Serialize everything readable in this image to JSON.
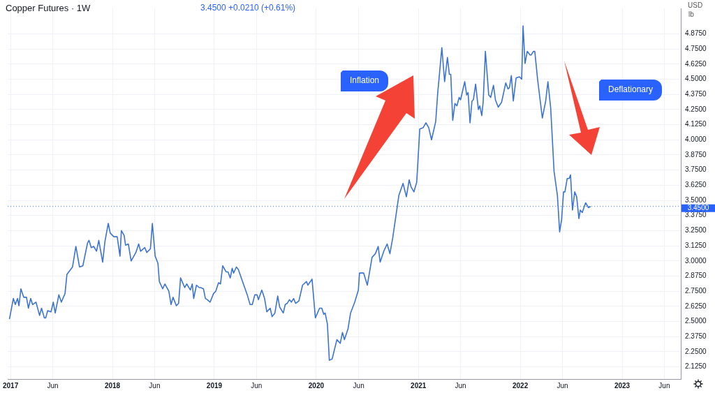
{
  "chart_data": {
    "type": "line",
    "title": "Copper Futures · 1W",
    "ylabel": "USD",
    "annotations": [
      "3.4500 +0.0210 (+0.61%)",
      "lb",
      "Inflation",
      "Deflationary"
    ],
    "x": [
      "2016-12-28",
      "2017-01-11",
      "2017-01-18",
      "2017-01-26",
      "2017-01-31",
      "2017-02-07",
      "2017-02-17",
      "2017-02-27",
      "2017-03-06",
      "2017-03-14",
      "2017-03-21",
      "2017-04-02",
      "2017-04-15",
      "2017-04-22",
      "2017-05-02",
      "2017-05-07",
      "2017-05-14",
      "2017-05-26",
      "2017-06-03",
      "2017-06-10",
      "2017-06-23",
      "2017-07-02",
      "2017-07-15",
      "2017-07-22",
      "2017-08-11",
      "2017-08-23",
      "2017-09-05",
      "2017-09-17",
      "2017-10-04",
      "2017-10-09",
      "2017-10-17",
      "2017-10-26",
      "2017-11-05",
      "2017-11-13",
      "2017-11-27",
      "2017-12-05",
      "2017-12-17",
      "2017-12-24",
      "2018-01-06",
      "2018-01-18",
      "2018-01-28",
      "2018-02-02",
      "2018-02-12",
      "2018-02-17",
      "2018-02-27",
      "2018-03-09",
      "2018-03-26",
      "2018-04-05",
      "2018-04-12",
      "2018-04-27",
      "2018-05-04",
      "2018-05-17",
      "2018-05-24",
      "2018-06-03",
      "2018-06-13",
      "2018-06-18",
      "2018-06-30",
      "2018-07-08",
      "2018-07-22",
      "2018-07-30",
      "2018-08-06",
      "2018-08-18",
      "2018-08-26",
      "2018-09-02",
      "2018-09-17",
      "2018-09-24",
      "2018-10-07",
      "2018-10-14",
      "2018-10-19",
      "2018-10-29",
      "2018-11-08",
      "2018-11-13",
      "2018-11-23",
      "2018-11-30",
      "2018-12-07",
      "2018-12-17",
      "2018-12-29",
      "2019-01-06",
      "2019-01-16",
      "2019-01-23",
      "2019-01-31",
      "2019-02-12",
      "2019-02-19",
      "2019-02-27",
      "2019-03-06",
      "2019-03-11",
      "2019-03-21",
      "2019-03-28",
      "2019-04-12",
      "2019-04-29",
      "2019-05-09",
      "2019-05-17",
      "2019-05-26",
      "2019-06-03",
      "2019-06-08",
      "2019-06-20",
      "2019-06-30",
      "2019-07-08",
      "2019-07-20",
      "2019-07-27",
      "2019-08-06",
      "2019-08-16",
      "2019-08-23",
      "2019-09-05",
      "2019-09-12",
      "2019-09-19",
      "2019-09-27",
      "2019-10-04",
      "2019-10-12",
      "2019-10-19",
      "2019-10-31",
      "2019-11-13",
      "2019-11-27",
      "2019-12-02",
      "2019-12-17",
      "2019-12-29",
      "2020-01-13",
      "2020-01-21",
      "2020-01-28",
      "2020-02-02",
      "2020-02-10",
      "2020-02-17",
      "2020-02-27",
      "2020-03-15",
      "2020-03-27",
      "2020-04-04",
      "2020-04-11",
      "2020-04-24",
      "2020-05-03",
      "2020-05-18",
      "2020-05-31",
      "2020-06-04",
      "2020-06-19",
      "2020-07-02",
      "2020-07-19",
      "2020-07-31",
      "2020-08-10",
      "2020-08-17",
      "2020-08-30",
      "2020-09-11",
      "2020-09-21",
      "2020-10-01",
      "2020-10-23",
      "2020-11-07",
      "2020-11-19",
      "2020-11-29",
      "2020-12-06",
      "2020-12-16",
      "2020-12-26",
      "2021-01-06",
      "2021-01-18",
      "2021-01-28",
      "2021-02-07",
      "2021-02-17",
      "2021-03-04",
      "2021-03-11",
      "2021-03-26",
      "2021-04-05",
      "2021-04-15",
      "2021-04-22",
      "2021-04-27",
      "2021-05-04",
      "2021-05-12",
      "2021-05-19",
      "2021-05-27",
      "2021-06-01",
      "2021-06-16",
      "2021-06-23",
      "2021-06-28",
      "2021-07-05",
      "2021-07-12",
      "2021-07-17",
      "2021-07-25",
      "2021-08-04",
      "2021-08-09",
      "2021-08-16",
      "2021-08-21",
      "2021-08-29",
      "2021-09-10",
      "2021-09-17",
      "2021-09-27",
      "2021-10-04",
      "2021-10-14",
      "2021-10-26",
      "2021-11-10",
      "2021-11-18",
      "2021-11-23",
      "2021-11-30",
      "2021-12-07",
      "2021-12-17",
      "2021-12-29",
      "2022-01-06",
      "2022-01-11",
      "2022-01-18",
      "2022-01-26",
      "2022-02-05",
      "2022-02-09",
      "2022-02-17",
      "2022-02-22",
      "2022-03-04",
      "2022-03-21",
      "2022-04-02",
      "2022-04-10",
      "2022-04-20",
      "2022-05-02",
      "2022-05-14",
      "2022-05-22",
      "2022-05-29",
      "2022-06-05",
      "2022-06-10",
      "2022-06-18",
      "2022-06-25",
      "2022-06-30",
      "2022-07-07",
      "2022-07-15",
      "2022-07-22",
      "2022-07-30",
      "2022-08-04",
      "2022-08-11",
      "2022-08-23",
      "2022-09-02",
      "2022-09-10"
    ],
    "series": [
      {
        "color": "#3b73d3",
        "values": [
          2.52,
          2.69,
          2.64,
          2.69,
          2.63,
          2.77,
          2.7,
          2.7,
          2.61,
          2.69,
          2.64,
          2.66,
          2.55,
          2.61,
          2.53,
          2.53,
          2.59,
          2.58,
          2.66,
          2.57,
          2.72,
          2.66,
          2.73,
          2.89,
          2.95,
          3.12,
          2.95,
          2.96,
          3.15,
          3.17,
          3.11,
          3.12,
          3.08,
          3.17,
          2.99,
          3.16,
          3.31,
          3.23,
          3.2,
          3.2,
          3.04,
          3.25,
          3.21,
          3.13,
          3.14,
          3.0,
          3.07,
          3.14,
          3.08,
          3.11,
          3.07,
          3.1,
          3.31,
          3.04,
          2.98,
          2.83,
          2.77,
          2.81,
          2.75,
          2.64,
          2.7,
          2.63,
          2.65,
          2.86,
          2.78,
          2.81,
          2.76,
          2.81,
          2.69,
          2.8,
          2.78,
          2.78,
          2.77,
          2.69,
          2.68,
          2.66,
          2.73,
          2.75,
          2.82,
          2.81,
          2.96,
          2.91,
          2.91,
          2.86,
          2.94,
          2.9,
          2.95,
          2.93,
          2.83,
          2.72,
          2.64,
          2.64,
          2.72,
          2.72,
          2.68,
          2.76,
          2.69,
          2.58,
          2.61,
          2.54,
          2.57,
          2.71,
          2.62,
          2.57,
          2.64,
          2.65,
          2.68,
          2.66,
          2.69,
          2.65,
          2.67,
          2.8,
          2.83,
          2.8,
          2.85,
          2.53,
          2.61,
          2.61,
          2.56,
          2.57,
          2.48,
          2.18,
          2.19,
          2.35,
          2.32,
          2.41,
          2.35,
          2.44,
          2.57,
          2.66,
          2.76,
          2.9,
          2.9,
          2.8,
          3.03,
          3.06,
          3.12,
          2.99,
          3.08,
          3.14,
          3.06,
          3.19,
          3.54,
          3.64,
          3.53,
          3.67,
          3.61,
          3.57,
          3.65,
          4.09,
          4.1,
          4.14,
          4.1,
          4.0,
          4.15,
          4.38,
          4.76,
          4.48,
          4.68,
          4.54,
          4.54,
          4.16,
          4.3,
          4.28,
          4.35,
          4.33,
          4.48,
          4.37,
          4.39,
          4.14,
          4.32,
          4.33,
          4.46,
          4.25,
          4.28,
          4.2,
          4.31,
          4.73,
          4.37,
          4.35,
          4.45,
          4.33,
          4.27,
          4.31,
          4.47,
          4.42,
          4.43,
          4.53,
          4.32,
          4.51,
          4.52,
          4.5,
          4.94,
          4.63,
          4.73,
          4.7,
          4.7,
          4.73,
          4.73,
          4.5,
          4.18,
          4.32,
          4.48,
          4.26,
          3.74,
          3.54,
          3.24,
          3.34,
          3.57,
          3.57,
          3.68,
          3.68,
          3.71,
          3.42,
          3.57,
          3.53,
          3.35,
          3.42,
          3.4,
          3.48,
          3.44,
          3.45
        ]
      }
    ],
    "xlim": [
      "2016-12-22",
      "2023-07-30"
    ],
    "xticks": [
      {
        "value": "2017-01-01",
        "label": "2017"
      },
      {
        "value": "2017-06-01",
        "label": "Jun"
      },
      {
        "value": "2018-01-01",
        "label": "2018"
      },
      {
        "value": "2018-06-01",
        "label": "Jun"
      },
      {
        "value": "2019-01-01",
        "label": "2019"
      },
      {
        "value": "2019-06-01",
        "label": "Jun"
      },
      {
        "value": "2020-01-01",
        "label": "2020"
      },
      {
        "value": "2020-06-01",
        "label": "Jun"
      },
      {
        "value": "2021-01-01",
        "label": "2021"
      },
      {
        "value": "2021-06-01",
        "label": "Jun"
      },
      {
        "value": "2022-01-01",
        "label": "2022"
      },
      {
        "value": "2022-06-01",
        "label": "Jun"
      },
      {
        "value": "2023-01-01",
        "label": "2023"
      },
      {
        "value": "2023-06-01",
        "label": "Jun"
      }
    ],
    "ylim": [
      2.025,
      5.085
    ],
    "yticks": [
      {
        "value": 2.125,
        "label": "2.1250"
      },
      {
        "value": 2.25,
        "label": "2.2500"
      },
      {
        "value": 2.375,
        "label": "2.3750"
      },
      {
        "value": 2.5,
        "label": "2.5000"
      },
      {
        "value": 2.625,
        "label": "2.6250"
      },
      {
        "value": 2.75,
        "label": "2.7500"
      },
      {
        "value": 2.875,
        "label": "2.8750"
      },
      {
        "value": 3,
        "label": "3.0000"
      },
      {
        "value": 3.125,
        "label": "3.1250"
      },
      {
        "value": 3.25,
        "label": "3.2500"
      },
      {
        "value": 3.375,
        "label": "3.3750"
      },
      {
        "value": 3.5,
        "label": "3.5000"
      },
      {
        "value": 3.625,
        "label": "3.6250"
      },
      {
        "value": 3.75,
        "label": "3.7500"
      },
      {
        "value": 3.875,
        "label": "3.8750"
      },
      {
        "value": 4,
        "label": "4.0000"
      },
      {
        "value": 4.125,
        "label": "4.1250"
      },
      {
        "value": 4.25,
        "label": "4.2500"
      },
      {
        "value": 4.375,
        "label": "4.3750"
      },
      {
        "value": 4.5,
        "label": "4.5000"
      },
      {
        "value": 4.625,
        "label": "4.6250"
      },
      {
        "value": 4.75,
        "label": "4.7500"
      },
      {
        "value": 4.875,
        "label": "4.8750"
      }
    ],
    "ref_lines": [
      {
        "axis": "y",
        "value": 3.45,
        "label": "3.4500",
        "color": "#2962ff",
        "line_style": "dotted"
      }
    ],
    "grid": true,
    "legend": false,
    "marker": "none",
    "line_style": "solid"
  }
}
